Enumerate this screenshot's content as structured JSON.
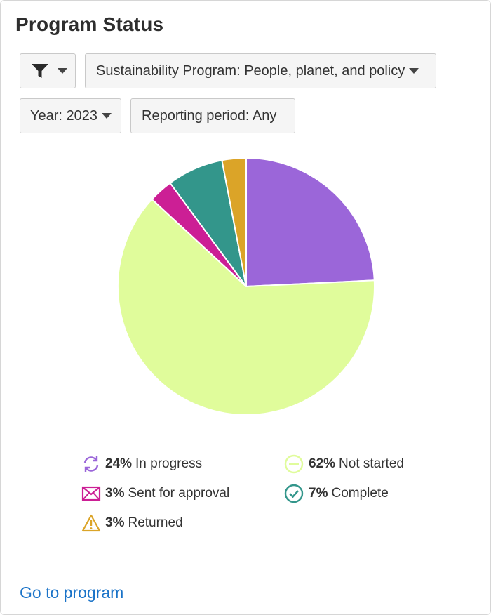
{
  "header": {
    "title": "Program Status"
  },
  "filters": {
    "filter_icon": "filter-icon",
    "program_label": "Sustainability Program: People, planet, and policy",
    "year_label": "Year: 2023",
    "period_label": "Reporting period: Any"
  },
  "chart_data": {
    "type": "pie",
    "slices": [
      {
        "label": "In progress",
        "value": 24,
        "color": "#9b66d9"
      },
      {
        "label": "Not started",
        "value": 62,
        "color": "#e0fc9b"
      },
      {
        "label": "Sent for approval",
        "value": 3,
        "color": "#cc1f95"
      },
      {
        "label": "Complete",
        "value": 7,
        "color": "#33968b"
      },
      {
        "label": "Returned",
        "value": 3,
        "color": "#dba428"
      }
    ]
  },
  "legend": {
    "in_progress": {
      "pct": "24%",
      "label": "In progress",
      "icon": "refresh-icon",
      "color": "#9b66d9"
    },
    "not_started": {
      "pct": "62%",
      "label": "Not started",
      "icon": "minus-circle-icon",
      "color": "#e0fc9b"
    },
    "sent_for_approval": {
      "pct": "3%",
      "label": "Sent for approval",
      "icon": "envelope-icon",
      "color": "#cc1f95"
    },
    "complete": {
      "pct": "7%",
      "label": "Complete",
      "icon": "check-circle-icon",
      "color": "#33968b"
    },
    "returned": {
      "pct": "3%",
      "label": "Returned",
      "icon": "warning-icon",
      "color": "#dba428"
    }
  },
  "footer": {
    "link_label": "Go to program"
  }
}
